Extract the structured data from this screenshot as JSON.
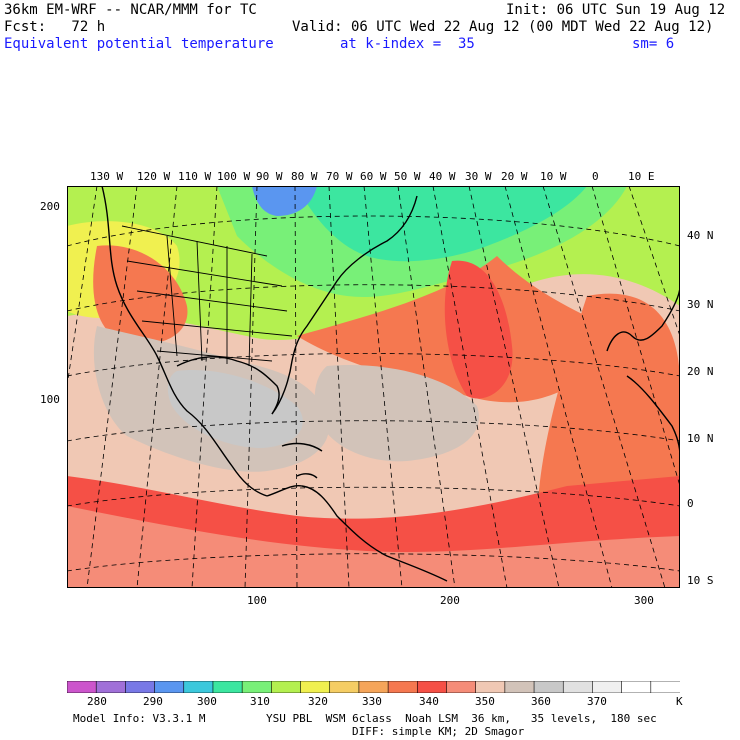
{
  "header": {
    "line1_left": "36km EM-WRF -- NCAR/MMM for TC",
    "line1_right": "Init: 06 UTC Sun 19 Aug 12",
    "line2_left": "Fcst:   72 h",
    "line2_right": "Valid: 06 UTC Wed 22 Aug 12 (00 MDT Wed 22 Aug 12)",
    "field_name": "Equivalent potential temperature",
    "level": "at k-index =  35",
    "smoothing": "sm= 6"
  },
  "map": {
    "lon_labels": [
      "130 W",
      "120 W",
      "110 W",
      "100 W",
      "90 W",
      "80 W",
      "70 W",
      "60 W",
      "50 W",
      "40 W",
      "30 W",
      "20 W",
      "10 W",
      "0",
      "10 E"
    ],
    "lat_labels": [
      "40 N",
      "30 N",
      "20 N",
      "10 N",
      "0",
      "10 S"
    ],
    "grid_y_labels": [
      "200",
      "100"
    ],
    "grid_x_labels": [
      "100",
      "200",
      "300"
    ]
  },
  "colorbar": {
    "labels": [
      "280",
      "290",
      "300",
      "310",
      "320",
      "330",
      "340",
      "350",
      "360",
      "370"
    ],
    "unit": "K",
    "colors": [
      "#cc55cc",
      "#a070d8",
      "#7878e6",
      "#5a96f0",
      "#3cc8dc",
      "#3ce6a0",
      "#78f078",
      "#b4f050",
      "#f0f050",
      "#f5cd64",
      "#f5a55a",
      "#f57850",
      "#f55046",
      "#f58c78",
      "#f0c8b4",
      "#d2c3b9",
      "#c8c8c8",
      "#e1e1e1",
      "#f0f0f0",
      "#ffffff",
      "#ffffff"
    ]
  },
  "footer": {
    "model_info": "Model Info: V3.3.1 M",
    "physics": "YSU PBL  WSM 6class  Noah LSM  36 km,   35 levels,  180 sec",
    "diffusion": "DIFF: simple KM; 2D Smagor"
  }
}
